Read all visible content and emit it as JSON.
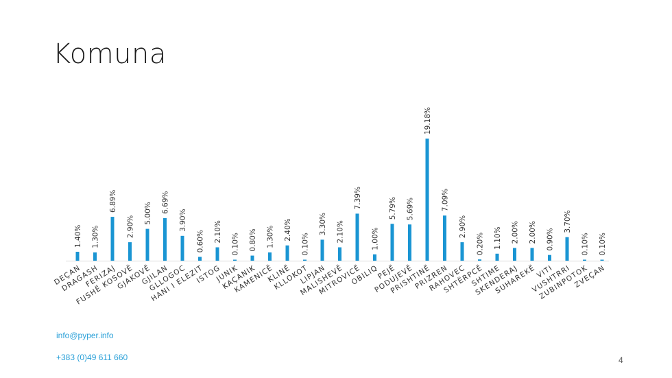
{
  "slide": {
    "title": "Komuna",
    "email": "info@pyper.info",
    "phone": "+383 (0)49 611 660",
    "page_number": "4"
  },
  "colors": {
    "bar": "#1a95d3",
    "axis": "#d9d9d9",
    "text": "#333333"
  },
  "chart_data": {
    "type": "bar",
    "title": "",
    "xlabel": "",
    "ylabel": "",
    "ylim": [
      0,
      20
    ],
    "grid": false,
    "categories": [
      "DEÇAN",
      "DRAGASH",
      "FERIZAJ",
      "FUSHË KOSOVË",
      "GJAKOVË",
      "GJILAN",
      "GLLOGOC",
      "HANI I ELEZIT",
      "ISTOG",
      "JUNIK",
      "KAÇANIK",
      "KAMENICË",
      "KLINË",
      "KLLOKOT",
      "LIPJAN",
      "MALISHEVË",
      "MITROVICË",
      "OBILIQ",
      "PEJË",
      "PODUJEVË",
      "PRISHTINË",
      "PRIZREN",
      "RAHOVEC",
      "SHTËRPCË",
      "SHTIME",
      "SKENDERAJ",
      "SUHAREKË",
      "VITI",
      "VUSHTRRI",
      "ZUBINPOTOK",
      "ZVEÇAN"
    ],
    "values": [
      1.4,
      1.3,
      6.89,
      2.9,
      5.0,
      6.69,
      3.9,
      0.6,
      2.1,
      0.1,
      0.8,
      1.3,
      2.4,
      0.1,
      3.3,
      2.1,
      7.39,
      1.0,
      5.79,
      5.69,
      19.18,
      7.09,
      2.9,
      0.2,
      1.1,
      2.0,
      2.0,
      0.9,
      3.7,
      0.1,
      0.1
    ],
    "labels": [
      "1.40%",
      "1.30%",
      "6.89%",
      "2.90%",
      "5.00%",
      "6.69%",
      "3.90%",
      "0.60%",
      "2.10%",
      "0.10%",
      "0.80%",
      "1.30%",
      "2.40%",
      "0.10%",
      "3.30%",
      "2.10%",
      "7.39%",
      "1.00%",
      "5.79%",
      "5.69%",
      "19.18%",
      "7.09%",
      "2.90%",
      "0.20%",
      "1.10%",
      "2.00%",
      "2.00%",
      "0.90%",
      "3.70%",
      "0.10%",
      "0.10%"
    ]
  }
}
